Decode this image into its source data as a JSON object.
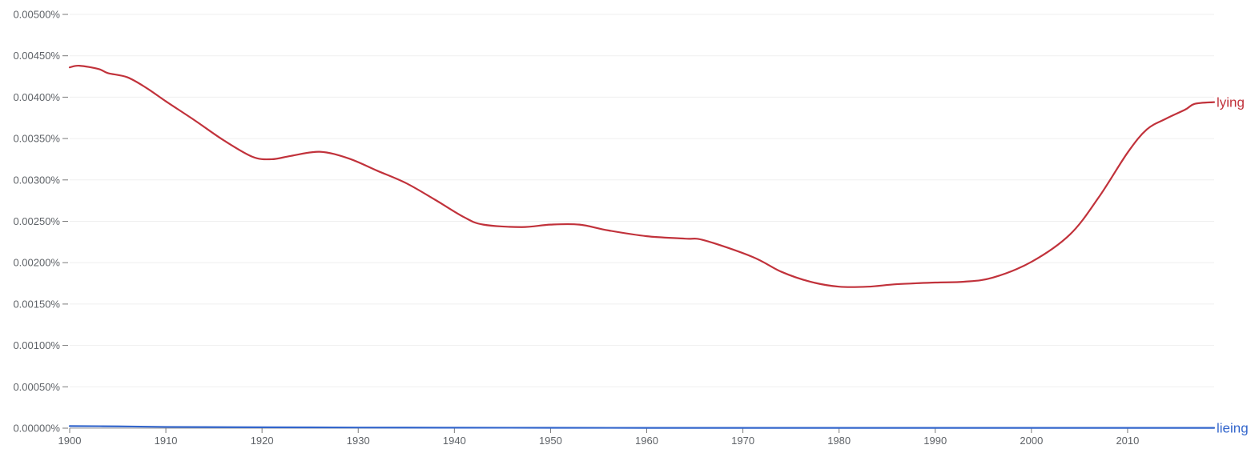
{
  "chart_data": {
    "type": "line",
    "title": "",
    "xlabel": "",
    "ylabel": "",
    "xlim": [
      1900,
      2019
    ],
    "ylim": [
      0,
      0.005
    ],
    "grid": true,
    "legend": "end-of-line labels",
    "x_ticks": [
      {
        "value": 1900,
        "label": "1900"
      },
      {
        "value": 1910,
        "label": "1910"
      },
      {
        "value": 1920,
        "label": "1920"
      },
      {
        "value": 1930,
        "label": "1930"
      },
      {
        "value": 1940,
        "label": "1940"
      },
      {
        "value": 1950,
        "label": "1950"
      },
      {
        "value": 1960,
        "label": "1960"
      },
      {
        "value": 1970,
        "label": "1970"
      },
      {
        "value": 1980,
        "label": "1980"
      },
      {
        "value": 1990,
        "label": "1990"
      },
      {
        "value": 2000,
        "label": "2000"
      },
      {
        "value": 2010,
        "label": "2010"
      }
    ],
    "y_ticks": [
      {
        "value": 0,
        "label": "0.00000%"
      },
      {
        "value": 0.0005,
        "label": "0.00050%"
      },
      {
        "value": 0.001,
        "label": "0.00100%"
      },
      {
        "value": 0.0015,
        "label": "0.00150%"
      },
      {
        "value": 0.002,
        "label": "0.00200%"
      },
      {
        "value": 0.0025,
        "label": "0.00250%"
      },
      {
        "value": 0.003,
        "label": "0.00300%"
      },
      {
        "value": 0.0035,
        "label": "0.00350%"
      },
      {
        "value": 0.004,
        "label": "0.00400%"
      },
      {
        "value": 0.0045,
        "label": "0.00450%"
      },
      {
        "value": 0.005,
        "label": "0.00500%"
      }
    ],
    "series": [
      {
        "name": "lying",
        "color": "#c1323b",
        "x": [
          1900,
          1901,
          1903,
          1904,
          1906,
          1908,
          1910,
          1913,
          1916,
          1919,
          1921,
          1923,
          1926,
          1929,
          1932,
          1935,
          1938,
          1941,
          1943,
          1947,
          1950,
          1953,
          1956,
          1960,
          1964,
          1966,
          1971,
          1974,
          1977,
          1980,
          1983,
          1986,
          1990,
          1993,
          1996,
          2000,
          2004,
          2007,
          2010,
          2012,
          2014,
          2016,
          2017,
          2019
        ],
        "values": [
          0.00436,
          0.00438,
          0.00434,
          0.00429,
          0.00424,
          0.00411,
          0.00395,
          0.00372,
          0.00348,
          0.00328,
          0.00325,
          0.00329,
          0.00334,
          0.00326,
          0.00311,
          0.00296,
          0.00276,
          0.00255,
          0.00246,
          0.00243,
          0.00246,
          0.00246,
          0.00239,
          0.00232,
          0.00229,
          0.00227,
          0.00207,
          0.00189,
          0.00177,
          0.00171,
          0.00171,
          0.00174,
          0.00176,
          0.00177,
          0.00182,
          0.00201,
          0.00234,
          0.00279,
          0.00333,
          0.00361,
          0.00374,
          0.00385,
          0.00392,
          0.00394
        ],
        "end_label": "lying"
      },
      {
        "name": "lieing",
        "color": "#3366cc",
        "x": [
          1900,
          1905,
          1910,
          1920,
          1930,
          1940,
          1950,
          1960,
          1970,
          1980,
          1990,
          2000,
          2010,
          2019
        ],
        "values": [
          2.5e-05,
          2.2e-05,
          1.5e-05,
          1.1e-05,
          8e-06,
          6e-06,
          5e-06,
          4e-06,
          4e-06,
          4e-06,
          4e-06,
          4e-06,
          4e-06,
          4e-06
        ],
        "end_label": "lieing"
      }
    ]
  }
}
